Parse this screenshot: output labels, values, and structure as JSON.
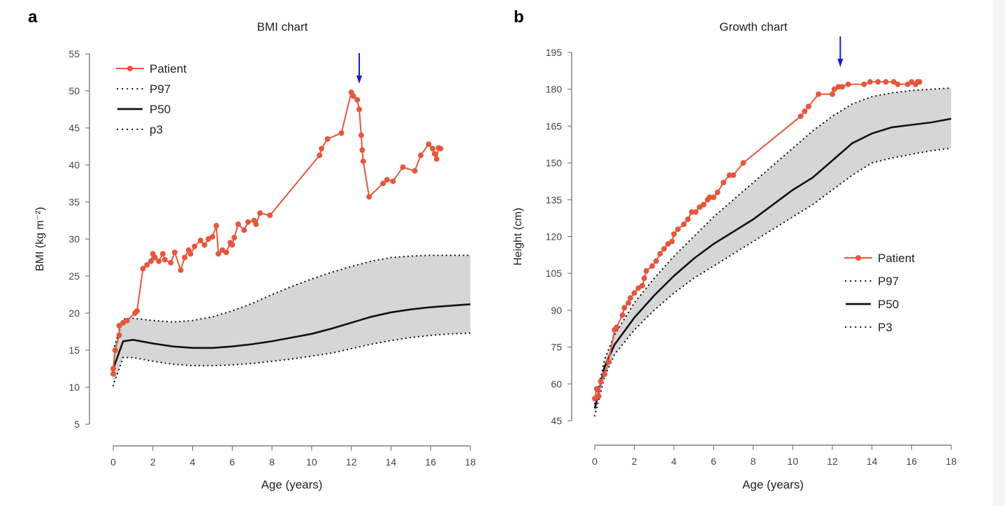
{
  "colors": {
    "patient": "#e5573d",
    "band": "#d6d6d6",
    "percentile": "#111111",
    "arrow": "#1a1ad6",
    "axis": "#666666"
  },
  "chart_data": [
    {
      "panel_label": "a",
      "type": "line",
      "title": "BMI chart",
      "xlabel": "Age (years)",
      "ylabel": "BMI (kg m⁻²)",
      "xlim": [
        0,
        18
      ],
      "ylim": [
        5,
        55
      ],
      "xticks": [
        0,
        2,
        4,
        6,
        8,
        10,
        12,
        14,
        16,
        18
      ],
      "yticks": [
        5,
        10,
        15,
        20,
        25,
        30,
        35,
        40,
        45,
        50,
        55
      ],
      "legend_position": "top-left",
      "annotation_arrow_age": 12.4,
      "series": [
        {
          "name": "Patient",
          "style": "line-marker",
          "x": [
            0,
            0,
            0.1,
            0.3,
            0.3,
            0.5,
            0.7,
            1.1,
            1.2,
            1.5,
            1.7,
            1.9,
            2.0,
            2.1,
            2.3,
            2.5,
            2.6,
            2.9,
            3.1,
            3.4,
            3.6,
            3.8,
            3.9,
            4.1,
            4.4,
            4.6,
            4.8,
            5.0,
            5.2,
            5.3,
            5.5,
            5.7,
            5.9,
            6.0,
            6.1,
            6.3,
            6.6,
            6.8,
            7.1,
            7.2,
            7.4,
            7.9,
            10.4,
            10.5,
            10.8,
            11.5,
            12.0,
            12.1,
            12.3,
            12.4,
            12.5,
            12.55,
            12.6,
            12.9,
            13.6,
            13.8,
            14.1,
            14.6,
            15.2,
            15.5,
            15.9,
            16.1,
            16.2,
            16.3,
            16.4,
            16.5
          ],
          "y": [
            11.8,
            12.5,
            15,
            17,
            18.3,
            18.7,
            19,
            20,
            20.3,
            26,
            26.5,
            27,
            28,
            27.5,
            27,
            28,
            27.2,
            26.8,
            28.2,
            25.8,
            27.5,
            28.5,
            28,
            29,
            29.8,
            29.2,
            30,
            30.3,
            31.8,
            28,
            28.5,
            28.2,
            29.5,
            29.2,
            30.2,
            32,
            31.2,
            32.3,
            32.5,
            32,
            33.5,
            33.2,
            41.3,
            42.2,
            43.5,
            44.3,
            49.8,
            49.3,
            48.8,
            47.5,
            44,
            42,
            40.5,
            35.7,
            37.5,
            38,
            37.8,
            39.7,
            39.2,
            41.3,
            42.8,
            42.2,
            41.5,
            40.8,
            42.3,
            42.2
          ]
        },
        {
          "name": "P97",
          "style": "dotted",
          "x": [
            0,
            0.5,
            1,
            2,
            3,
            4,
            5,
            6,
            7,
            8,
            9,
            10,
            11,
            12,
            13,
            14,
            15,
            16,
            17,
            18
          ],
          "y": [
            15,
            19.2,
            19.3,
            19,
            18.8,
            19,
            19.5,
            20.3,
            21.3,
            22.5,
            23.6,
            24.6,
            25.5,
            26.3,
            27,
            27.5,
            27.7,
            27.8,
            27.8,
            27.8
          ]
        },
        {
          "name": "P50",
          "style": "solid",
          "x": [
            0,
            0.5,
            1,
            2,
            3,
            4,
            5,
            6,
            7,
            8,
            9,
            10,
            11,
            12,
            13,
            14,
            15,
            16,
            17,
            18
          ],
          "y": [
            12.5,
            16.2,
            16.4,
            15.9,
            15.5,
            15.3,
            15.3,
            15.5,
            15.8,
            16.2,
            16.7,
            17.2,
            17.9,
            18.7,
            19.5,
            20.1,
            20.5,
            20.8,
            21.0,
            21.2
          ]
        },
        {
          "name": "p3",
          "style": "dotted",
          "x": [
            0,
            0.5,
            1,
            2,
            3,
            4,
            5,
            6,
            7,
            8,
            9,
            10,
            11,
            12,
            13,
            14,
            15,
            16,
            17,
            18
          ],
          "y": [
            10.2,
            14,
            14,
            13.5,
            13.1,
            12.9,
            12.9,
            13,
            13.2,
            13.5,
            13.8,
            14.2,
            14.6,
            15.2,
            15.8,
            16.3,
            16.7,
            17,
            17.2,
            17.3
          ]
        }
      ]
    },
    {
      "panel_label": "b",
      "type": "line",
      "title": "Growth chart",
      "xlabel": "Age (years)",
      "ylabel": "Height (cm)",
      "xlim": [
        0,
        18
      ],
      "ylim": [
        45,
        195
      ],
      "xticks": [
        0,
        2,
        4,
        6,
        8,
        10,
        12,
        14,
        16,
        18
      ],
      "yticks": [
        45,
        60,
        75,
        90,
        105,
        120,
        135,
        150,
        165,
        180,
        195
      ],
      "legend_position": "center-right",
      "annotation_arrow_age": 12.4,
      "series": [
        {
          "name": "Patient",
          "style": "line-marker",
          "x": [
            0,
            0.1,
            0.2,
            0.3,
            0.5,
            0.7,
            1.0,
            1.1,
            1.4,
            1.5,
            1.7,
            1.8,
            2.0,
            2.2,
            2.4,
            2.5,
            2.6,
            2.9,
            3.1,
            3.3,
            3.5,
            3.7,
            3.9,
            4.0,
            4.2,
            4.5,
            4.7,
            4.9,
            5.1,
            5.3,
            5.5,
            5.7,
            5.8,
            6.0,
            6.2,
            6.5,
            6.8,
            7.0,
            7.5,
            10.4,
            10.6,
            10.8,
            11.3,
            12.0,
            12.1,
            12.3,
            12.5,
            12.8,
            13.6,
            13.9,
            14.3,
            14.7,
            15.1,
            15.3,
            15.8,
            16.0,
            16.2,
            16.3,
            16.4
          ],
          "y": [
            54,
            58,
            55,
            61,
            64,
            69,
            82,
            83,
            88,
            91,
            93,
            95,
            97,
            99,
            100,
            103,
            106,
            108,
            110,
            113,
            115,
            117,
            118,
            121,
            123,
            125,
            127,
            130,
            130,
            132,
            133,
            135,
            136,
            136,
            138,
            142,
            145,
            145,
            150,
            169,
            171,
            173,
            178,
            178,
            180,
            181,
            181,
            182,
            182,
            183,
            183,
            183,
            183,
            182,
            182,
            183,
            182,
            183,
            183
          ]
        },
        {
          "name": "P97",
          "style": "dotted",
          "x": [
            0,
            0.5,
            1,
            2,
            3,
            4,
            5,
            6,
            7,
            8,
            9,
            10,
            11,
            12,
            13,
            14,
            15,
            16,
            17,
            18
          ],
          "y": [
            52,
            70,
            80,
            93,
            103,
            112,
            120,
            128,
            135,
            142,
            149,
            156,
            163,
            169,
            174,
            177,
            178.5,
            179.5,
            180,
            180.5
          ]
        },
        {
          "name": "P50",
          "style": "solid",
          "x": [
            0,
            0.5,
            1,
            2,
            3,
            4,
            5,
            6,
            7,
            8,
            9,
            10,
            11,
            12,
            13,
            14,
            15,
            16,
            17,
            18
          ],
          "y": [
            50,
            67,
            76,
            87,
            96,
            104,
            111,
            117,
            122,
            127,
            133,
            139,
            144,
            151,
            158,
            162,
            164.5,
            165.5,
            166.5,
            168
          ]
        },
        {
          "name": "P3",
          "style": "dotted",
          "x": [
            0,
            0.5,
            1,
            2,
            3,
            4,
            5,
            6,
            7,
            8,
            9,
            10,
            11,
            12,
            13,
            14,
            15,
            16,
            17,
            18
          ],
          "y": [
            47,
            63,
            72,
            82,
            90,
            97,
            103,
            108,
            113,
            118,
            123,
            128,
            133,
            139,
            145,
            150,
            152,
            153.5,
            155,
            156
          ]
        }
      ]
    }
  ]
}
